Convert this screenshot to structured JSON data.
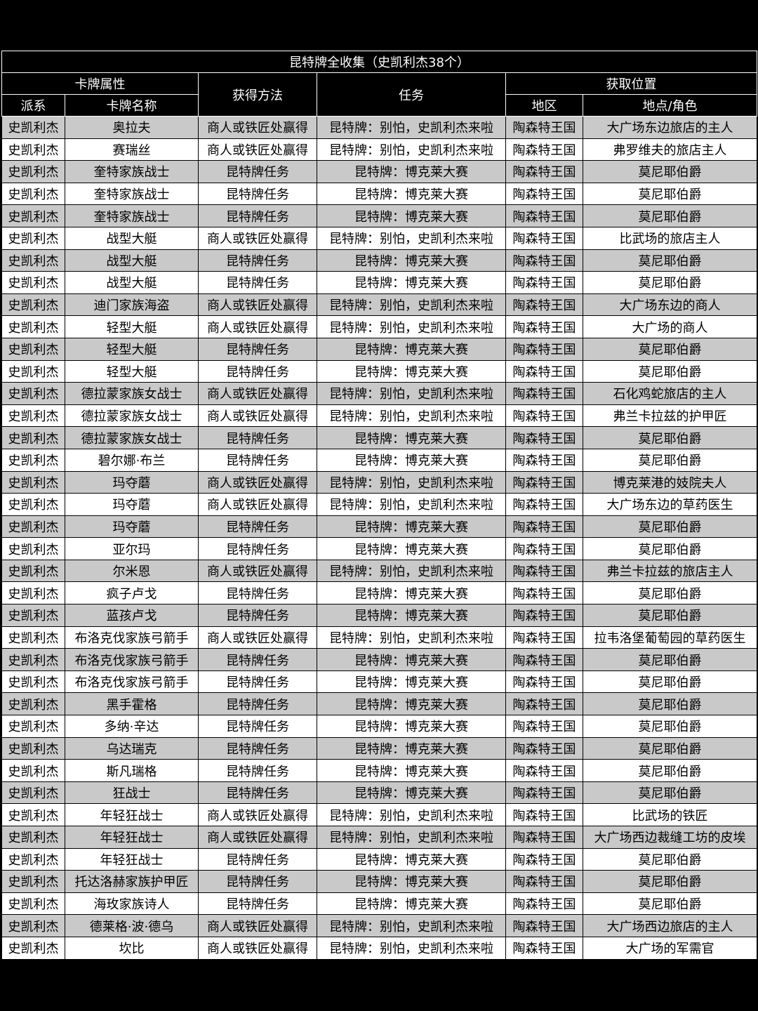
{
  "title": "昆特牌全收集（史凯利杰38个）",
  "header": {
    "attributes": "卡牌属性",
    "method": "获得方法",
    "quest": "任务",
    "location": "获取位置",
    "faction": "派系",
    "card_name": "卡牌名称",
    "region": "地区",
    "place": "地点/角色"
  },
  "rows": [
    [
      "史凯利杰",
      "奥拉夫",
      "商人或铁匠处赢得",
      "昆特牌：别怕，史凯利杰来啦",
      "陶森特王国",
      "大广场东边旅店的主人"
    ],
    [
      "史凯利杰",
      "赛瑞丝",
      "商人或铁匠处赢得",
      "昆特牌：别怕，史凯利杰来啦",
      "陶森特王国",
      "弗罗维夫的旅店主人"
    ],
    [
      "史凯利杰",
      "奎特家族战士",
      "昆特牌任务",
      "昆特牌：博克莱大赛",
      "陶森特王国",
      "莫尼耶伯爵"
    ],
    [
      "史凯利杰",
      "奎特家族战士",
      "昆特牌任务",
      "昆特牌：博克莱大赛",
      "陶森特王国",
      "莫尼耶伯爵"
    ],
    [
      "史凯利杰",
      "奎特家族战士",
      "昆特牌任务",
      "昆特牌：博克莱大赛",
      "陶森特王国",
      "莫尼耶伯爵"
    ],
    [
      "史凯利杰",
      "战型大艇",
      "商人或铁匠处赢得",
      "昆特牌：别怕，史凯利杰来啦",
      "陶森特王国",
      "比武场的旅店主人"
    ],
    [
      "史凯利杰",
      "战型大艇",
      "昆特牌任务",
      "昆特牌：博克莱大赛",
      "陶森特王国",
      "莫尼耶伯爵"
    ],
    [
      "史凯利杰",
      "战型大艇",
      "昆特牌任务",
      "昆特牌：博克莱大赛",
      "陶森特王国",
      "莫尼耶伯爵"
    ],
    [
      "史凯利杰",
      "迪门家族海盗",
      "商人或铁匠处赢得",
      "昆特牌：别怕，史凯利杰来啦",
      "陶森特王国",
      "大广场东边的商人"
    ],
    [
      "史凯利杰",
      "轻型大艇",
      "商人或铁匠处赢得",
      "昆特牌：别怕，史凯利杰来啦",
      "陶森特王国",
      "大广场的商人"
    ],
    [
      "史凯利杰",
      "轻型大艇",
      "昆特牌任务",
      "昆特牌：博克莱大赛",
      "陶森特王国",
      "莫尼耶伯爵"
    ],
    [
      "史凯利杰",
      "轻型大艇",
      "昆特牌任务",
      "昆特牌：博克莱大赛",
      "陶森特王国",
      "莫尼耶伯爵"
    ],
    [
      "史凯利杰",
      "德拉蒙家族女战士",
      "商人或铁匠处赢得",
      "昆特牌：别怕，史凯利杰来啦",
      "陶森特王国",
      "石化鸡蛇旅店的主人"
    ],
    [
      "史凯利杰",
      "德拉蒙家族女战士",
      "商人或铁匠处赢得",
      "昆特牌：别怕，史凯利杰来啦",
      "陶森特王国",
      "弗兰卡拉兹的护甲匠"
    ],
    [
      "史凯利杰",
      "德拉蒙家族女战士",
      "昆特牌任务",
      "昆特牌：博克莱大赛",
      "陶森特王国",
      "莫尼耶伯爵"
    ],
    [
      "史凯利杰",
      "碧尔娜·布兰",
      "昆特牌任务",
      "昆特牌：博克莱大赛",
      "陶森特王国",
      "莫尼耶伯爵"
    ],
    [
      "史凯利杰",
      "玛夺蘑",
      "商人或铁匠处赢得",
      "昆特牌：别怕，史凯利杰来啦",
      "陶森特王国",
      "博克莱港的妓院夫人"
    ],
    [
      "史凯利杰",
      "玛夺蘑",
      "商人或铁匠处赢得",
      "昆特牌：别怕，史凯利杰来啦",
      "陶森特王国",
      "大广场东边的草药医生"
    ],
    [
      "史凯利杰",
      "玛夺蘑",
      "昆特牌任务",
      "昆特牌：博克莱大赛",
      "陶森特王国",
      "莫尼耶伯爵"
    ],
    [
      "史凯利杰",
      "亚尔玛",
      "昆特牌任务",
      "昆特牌：博克莱大赛",
      "陶森特王国",
      "莫尼耶伯爵"
    ],
    [
      "史凯利杰",
      "尔米恩",
      "商人或铁匠处赢得",
      "昆特牌：别怕，史凯利杰来啦",
      "陶森特王国",
      "弗兰卡拉兹的旅店主人"
    ],
    [
      "史凯利杰",
      "疯子卢戈",
      "昆特牌任务",
      "昆特牌：博克莱大赛",
      "陶森特王国",
      "莫尼耶伯爵"
    ],
    [
      "史凯利杰",
      "蓝孩卢戈",
      "昆特牌任务",
      "昆特牌：博克莱大赛",
      "陶森特王国",
      "莫尼耶伯爵"
    ],
    [
      "史凯利杰",
      "布洛克伐家族弓箭手",
      "商人或铁匠处赢得",
      "昆特牌：别怕，史凯利杰来啦",
      "陶森特王国",
      "拉韦洛堡葡萄园的草药医生"
    ],
    [
      "史凯利杰",
      "布洛克伐家族弓箭手",
      "昆特牌任务",
      "昆特牌：博克莱大赛",
      "陶森特王国",
      "莫尼耶伯爵"
    ],
    [
      "史凯利杰",
      "布洛克伐家族弓箭手",
      "昆特牌任务",
      "昆特牌：博克莱大赛",
      "陶森特王国",
      "莫尼耶伯爵"
    ],
    [
      "史凯利杰",
      "黑手霍格",
      "昆特牌任务",
      "昆特牌：博克莱大赛",
      "陶森特王国",
      "莫尼耶伯爵"
    ],
    [
      "史凯利杰",
      "多纳·辛达",
      "昆特牌任务",
      "昆特牌：博克莱大赛",
      "陶森特王国",
      "莫尼耶伯爵"
    ],
    [
      "史凯利杰",
      "乌达瑞克",
      "昆特牌任务",
      "昆特牌：博克莱大赛",
      "陶森特王国",
      "莫尼耶伯爵"
    ],
    [
      "史凯利杰",
      "斯凡瑞格",
      "昆特牌任务",
      "昆特牌：博克莱大赛",
      "陶森特王国",
      "莫尼耶伯爵"
    ],
    [
      "史凯利杰",
      "狂战士",
      "昆特牌任务",
      "昆特牌：博克莱大赛",
      "陶森特王国",
      "莫尼耶伯爵"
    ],
    [
      "史凯利杰",
      "年轻狂战士",
      "商人或铁匠处赢得",
      "昆特牌：别怕，史凯利杰来啦",
      "陶森特王国",
      "比武场的铁匠"
    ],
    [
      "史凯利杰",
      "年轻狂战士",
      "商人或铁匠处赢得",
      "昆特牌：别怕，史凯利杰来啦",
      "陶森特王国",
      "大广场西边裁缝工坊的皮埃"
    ],
    [
      "史凯利杰",
      "年轻狂战士",
      "昆特牌任务",
      "昆特牌：博克莱大赛",
      "陶森特王国",
      "莫尼耶伯爵"
    ],
    [
      "史凯利杰",
      "托达洛赫家族护甲匠",
      "昆特牌任务",
      "昆特牌：博克莱大赛",
      "陶森特王国",
      "莫尼耶伯爵"
    ],
    [
      "史凯利杰",
      "海玫家族诗人",
      "昆特牌任务",
      "昆特牌：博克莱大赛",
      "陶森特王国",
      "莫尼耶伯爵"
    ],
    [
      "史凯利杰",
      "德莱格·波·德乌",
      "商人或铁匠处赢得",
      "昆特牌：别怕，史凯利杰来啦",
      "陶森特王国",
      "大广场西边旅店的主人"
    ],
    [
      "史凯利杰",
      "坎比",
      "商人或铁匠处赢得",
      "昆特牌：别怕，史凯利杰来啦",
      "陶森特王国",
      "大广场的军需官"
    ]
  ]
}
